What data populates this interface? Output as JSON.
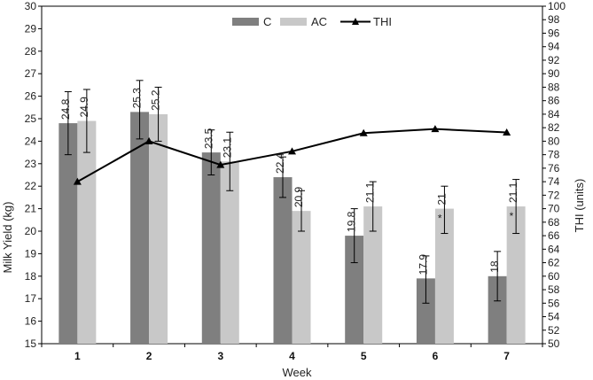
{
  "chart_data": {
    "type": "bar",
    "categories": [
      "1",
      "2",
      "3",
      "4",
      "5",
      "6",
      "7"
    ],
    "xlabel": "Week",
    "ylabel": "Milk Yield (kg)",
    "y2label": "THI (units)",
    "ylim": [
      15,
      30
    ],
    "y2lim": [
      50,
      100
    ],
    "yticks": [
      15,
      16,
      17,
      18,
      19,
      20,
      21,
      22,
      23,
      24,
      25,
      26,
      27,
      28,
      29,
      30
    ],
    "y2ticks": [
      50,
      52,
      54,
      56,
      58,
      60,
      62,
      64,
      66,
      68,
      70,
      72,
      74,
      76,
      78,
      80,
      82,
      84,
      86,
      88,
      90,
      92,
      94,
      96,
      98,
      100
    ],
    "legend_position": "top",
    "series": [
      {
        "name": "C",
        "type": "bar",
        "color": "#7f7f7f",
        "values": [
          24.8,
          25.3,
          23.5,
          22.4,
          19.8,
          17.9,
          18
        ],
        "labels": [
          "24.8",
          "25.3",
          "23.5",
          "22.4",
          "19.8",
          "17.9",
          "18"
        ],
        "error_low": [
          23.4,
          24.1,
          22.5,
          21.5,
          18.6,
          16.8,
          16.9
        ],
        "error_high": [
          26.2,
          26.7,
          24.5,
          23.3,
          21.0,
          18.9,
          19.1
        ]
      },
      {
        "name": "AC",
        "type": "bar",
        "color": "#c8c8c8",
        "values": [
          24.9,
          25.2,
          23.1,
          20.9,
          21.1,
          21,
          21.1
        ],
        "labels": [
          "24.9",
          "25.2",
          "23.1",
          "20.9",
          "21.1",
          "21",
          "21.1"
        ],
        "error_low": [
          23.5,
          24.0,
          21.8,
          20.0,
          20.0,
          19.9,
          19.9
        ],
        "error_high": [
          26.3,
          26.4,
          24.4,
          21.8,
          22.2,
          22.0,
          22.3
        ],
        "significance": [
          "",
          "",
          "",
          "",
          "",
          "*",
          "*"
        ]
      },
      {
        "name": "THI",
        "type": "line",
        "axis": "right",
        "color": "#000000",
        "marker": "triangle",
        "values": [
          74,
          80,
          76.5,
          78.5,
          81.2,
          81.8,
          81.3
        ]
      }
    ]
  }
}
